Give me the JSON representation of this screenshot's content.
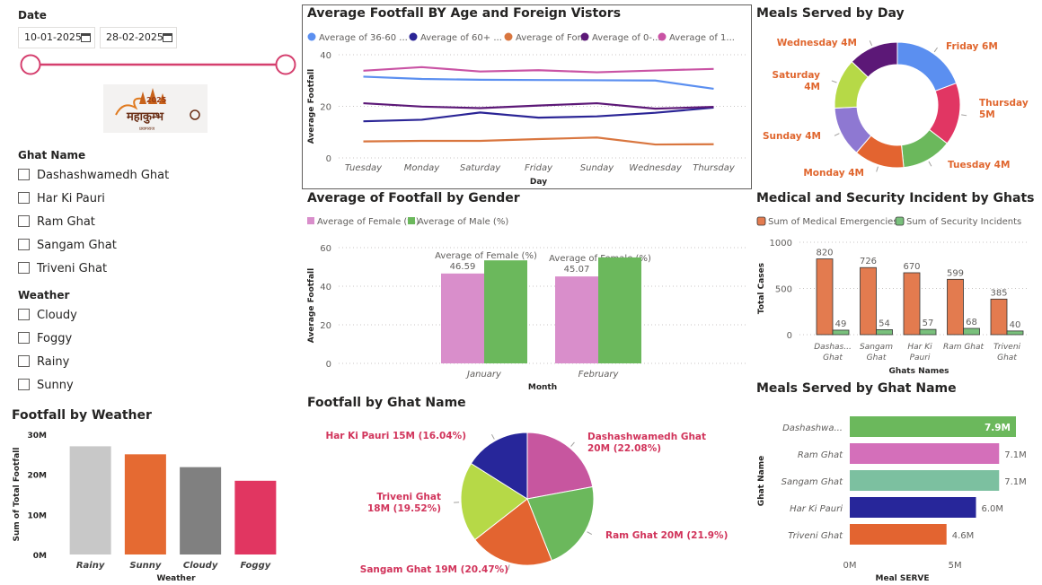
{
  "colors": {
    "slider": "#d53f6e",
    "ghat_label": "#d1345b",
    "meals_label": "#e0662e",
    "grid": "#c8c6c4"
  },
  "date_slicer": {
    "title": "Date",
    "start": "10-01-2025",
    "end": "28-02-2025",
    "icon": "calendar-icon"
  },
  "logo": {
    "text_top": "2025",
    "text_main": "महाकुम्भ",
    "text_sub": "प्रयागराज"
  },
  "ghat_slicer": {
    "title": "Ghat Name",
    "options": [
      "Dashashwamedh Ghat",
      "Har Ki Pauri",
      "Ram Ghat",
      "Sangam Ghat",
      "Triveni Ghat"
    ]
  },
  "weather_slicer": {
    "title": "Weather",
    "options": [
      "Cloudy",
      "Foggy",
      "Rainy",
      "Sunny"
    ]
  },
  "chart_data": [
    {
      "id": "footfall_by_weather",
      "type": "bar",
      "title": "Footfall by Weather",
      "xlabel": "Weather",
      "ylabel": "Sum of Total Footfall",
      "ylim": [
        0,
        30000000
      ],
      "ticks": [
        "0M",
        "10M",
        "20M",
        "30M"
      ],
      "categories": [
        "Rainy",
        "Sunny",
        "Cloudy",
        "Foggy"
      ],
      "values": [
        27000000,
        25000000,
        21800000,
        18400000
      ],
      "colors": [
        "#c8c8c8",
        "#e56a32",
        "#808080",
        "#e13661"
      ]
    },
    {
      "id": "avg_footfall_age",
      "type": "line",
      "title": "Average Footfall BY Age and Foreign Vistors",
      "xlabel": "Day",
      "ylabel": "Average Footfall",
      "ylim": [
        0,
        40
      ],
      "ticks": [
        "0",
        "20",
        "40"
      ],
      "categories": [
        "Tuesday",
        "Monday",
        "Saturday",
        "Friday",
        "Sunday",
        "Wednesday",
        "Thursday"
      ],
      "legend": [
        "Average of 36-60 ...",
        "Average of 60+ ...",
        "Average of For...",
        "Average of 0-...",
        "Average of 1..."
      ],
      "series": [
        {
          "name": "Average of 36-60",
          "color": "#5b8ff0",
          "values": [
            31.5,
            30.6,
            30.3,
            30.2,
            30.1,
            30.0,
            26.8
          ]
        },
        {
          "name": "Average of 60+",
          "color": "#2b2596",
          "values": [
            14.2,
            14.8,
            17.6,
            15.6,
            16.1,
            17.5,
            19.5
          ]
        },
        {
          "name": "Average of Foreign",
          "color": "#d9763f",
          "values": [
            6.4,
            6.6,
            6.6,
            7.3,
            7.9,
            5.2,
            5.3
          ]
        },
        {
          "name": "Average of 0-",
          "color": "#5c1877",
          "values": [
            21.2,
            19.9,
            19.3,
            20.3,
            21.2,
            19.1,
            19.8
          ]
        },
        {
          "name": "Average of 1",
          "color": "#c953a4",
          "values": [
            33.8,
            35.2,
            33.5,
            34.0,
            33.2,
            33.9,
            34.5
          ]
        }
      ]
    },
    {
      "id": "avg_footfall_gender",
      "type": "bar",
      "title": "Average of Footfall by Gender",
      "xlabel": "Month",
      "ylabel": "Average Footfall",
      "ylim": [
        0,
        60
      ],
      "ticks": [
        "0",
        "20",
        "40",
        "60"
      ],
      "categories": [
        "January",
        "February"
      ],
      "legend": [
        "Average of Female (%)",
        "Average of Male (%)"
      ],
      "series": [
        {
          "name": "Average of Female (%)",
          "color": "#d98ecb",
          "values": [
            46.59,
            45.07
          ],
          "labels": [
            "46.59",
            "45.07"
          ],
          "tooltip": "Average of Female (%)"
        },
        {
          "name": "Average of Male (%)",
          "color": "#6bb85c",
          "values": [
            53.41,
            54.93
          ]
        }
      ]
    },
    {
      "id": "footfall_by_ghat",
      "type": "pie",
      "title": "Footfall by Ghat Name",
      "slices": [
        {
          "label": "Dashashwamedh Ghat",
          "value": 22.08,
          "text1": "Dashashwamedh Ghat",
          "text2": "20M (22.08%)",
          "color": "#c7569f"
        },
        {
          "label": "Ram Ghat",
          "value": 21.9,
          "text1": "Ram Ghat 20M (21.9%)",
          "color": "#6bb85c"
        },
        {
          "label": "Sangam Ghat",
          "value": 20.47,
          "text1": "Sangam Ghat 19M (20.47%)",
          "color": "#e36430"
        },
        {
          "label": "Triveni Ghat",
          "value": 19.52,
          "text1": "Triveni Ghat",
          "text2": "18M (19.52%)",
          "color": "#b6d947"
        },
        {
          "label": "Har Ki Pauri",
          "value": 16.04,
          "text1": "Har Ki Pauri 15M (16.04%)",
          "color": "#27269a"
        }
      ]
    },
    {
      "id": "meals_by_day",
      "type": "pie",
      "title": "Meals Served by Day",
      "slices": [
        {
          "label": "Friday",
          "value": 6,
          "text1": "Friday 6M",
          "color": "#5b8ff0"
        },
        {
          "label": "Thursday",
          "value": 5,
          "text1": "Thursday",
          "text2": "5M",
          "color": "#e13663"
        },
        {
          "label": "Tuesday",
          "value": 4,
          "text1": "Tuesday 4M",
          "color": "#6bb85c"
        },
        {
          "label": "Monday",
          "value": 4,
          "text1": "Monday 4M",
          "color": "#e36430"
        },
        {
          "label": "Sunday",
          "value": 4,
          "text1": "Sunday 4M",
          "color": "#8e78d2"
        },
        {
          "label": "Saturday",
          "value": 4,
          "text1": "Saturday",
          "text2": "4M",
          "color": "#b6d947"
        },
        {
          "label": "Wednesday",
          "value": 4,
          "text1": "Wednesday 4M",
          "color": "#5c1877"
        }
      ]
    },
    {
      "id": "medical_security",
      "type": "bar",
      "title": "Medical and Security Incident by Ghats",
      "xlabel": "Ghats Names",
      "ylabel": "Total Cases",
      "ylim": [
        0,
        1000
      ],
      "ticks": [
        "0",
        "500",
        "1000"
      ],
      "categories": [
        [
          "Dashas...",
          "Ghat"
        ],
        [
          "Sangam",
          "Ghat"
        ],
        [
          "Har Ki",
          "Pauri"
        ],
        [
          "Ram Ghat"
        ],
        [
          "Triveni",
          "Ghat"
        ]
      ],
      "legend": [
        "Sum of Medical Emergencies",
        "Sum of Security Incidents"
      ],
      "series": [
        {
          "name": "Sum of Medical Emergencies",
          "color": "#e37b4f",
          "values": [
            820,
            726,
            670,
            599,
            385
          ]
        },
        {
          "name": "Sum of Security Incidents",
          "color": "#79c07c",
          "values": [
            49,
            54,
            57,
            68,
            40
          ]
        }
      ]
    },
    {
      "id": "meals_by_ghat",
      "type": "bar",
      "title": "Meals Served by Ghat Name",
      "xlabel": "Meal SERVE",
      "ylabel": "Ghat Name",
      "xlim": [
        0,
        8000000
      ],
      "ticks": [
        "0M",
        "5M"
      ],
      "categories": [
        "Dashashwa...",
        "Ram Ghat",
        "Sangam Ghat",
        "Har Ki Pauri",
        "Triveni Ghat"
      ],
      "values": [
        7900000,
        7100000,
        7100000,
        6000000,
        4600000
      ],
      "labels": [
        "7.9M",
        "7.1M",
        "7.1M",
        "6.0M",
        "4.6M"
      ],
      "colors": [
        "#6bb85c",
        "#d46fba",
        "#7cc0a0",
        "#27269a",
        "#e36430"
      ]
    }
  ]
}
